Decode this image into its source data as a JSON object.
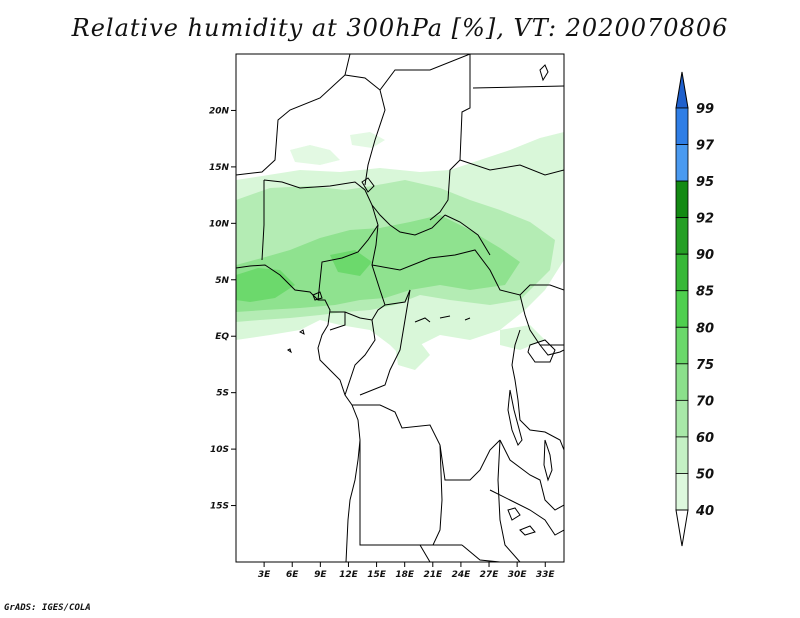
{
  "title": "Relative humidity at 300hPa [%], VT: 2020070806",
  "credit": "GrADS: IGES/COLA",
  "map": {
    "lon_range": [
      0,
      35
    ],
    "lat_range": [
      -20,
      25
    ],
    "lat_ticks": [
      {
        "value": 20,
        "label": "20N"
      },
      {
        "value": 15,
        "label": "15N"
      },
      {
        "value": 10,
        "label": "10N"
      },
      {
        "value": 5,
        "label": "5N"
      },
      {
        "value": 0,
        "label": "EQ"
      },
      {
        "value": -5,
        "label": "5S"
      },
      {
        "value": -10,
        "label": "10S"
      },
      {
        "value": -15,
        "label": "15S"
      }
    ],
    "lon_ticks": [
      {
        "value": 3,
        "label": "3E"
      },
      {
        "value": 6,
        "label": "6E"
      },
      {
        "value": 9,
        "label": "9E"
      },
      {
        "value": 12,
        "label": "12E"
      },
      {
        "value": 15,
        "label": "15E"
      },
      {
        "value": 18,
        "label": "18E"
      },
      {
        "value": 21,
        "label": "21E"
      },
      {
        "value": 24,
        "label": "24E"
      },
      {
        "value": 27,
        "label": "27E"
      },
      {
        "value": 30,
        "label": "30E"
      },
      {
        "value": 33,
        "label": "33E"
      }
    ]
  },
  "colorbar": {
    "levels": [
      {
        "label": "40",
        "color": "#f0fff0"
      },
      {
        "label": "50",
        "color": "#ddf8dd"
      },
      {
        "label": "60",
        "color": "#c4f0c4"
      },
      {
        "label": "70",
        "color": "#a8e8a8"
      },
      {
        "label": "75",
        "color": "#8be08b"
      },
      {
        "label": "80",
        "color": "#6ad86a"
      },
      {
        "label": "85",
        "color": "#4fcf4f"
      },
      {
        "label": "90",
        "color": "#37b837"
      },
      {
        "label": "92",
        "color": "#259f25"
      },
      {
        "label": "95",
        "color": "#138a13"
      },
      {
        "label": "97",
        "color": "#4a9af0"
      },
      {
        "label": "99",
        "color": "#2f7ee6"
      }
    ],
    "top_arrow_color": "#1f60cc",
    "bottom_arrow_color": "#ffffff"
  },
  "colors": {
    "humid_light": "#d9f7d9",
    "humid_mid": "#b4ecb4",
    "humid_strong": "#8fe28f",
    "humid_peak": "#6cd96c"
  }
}
